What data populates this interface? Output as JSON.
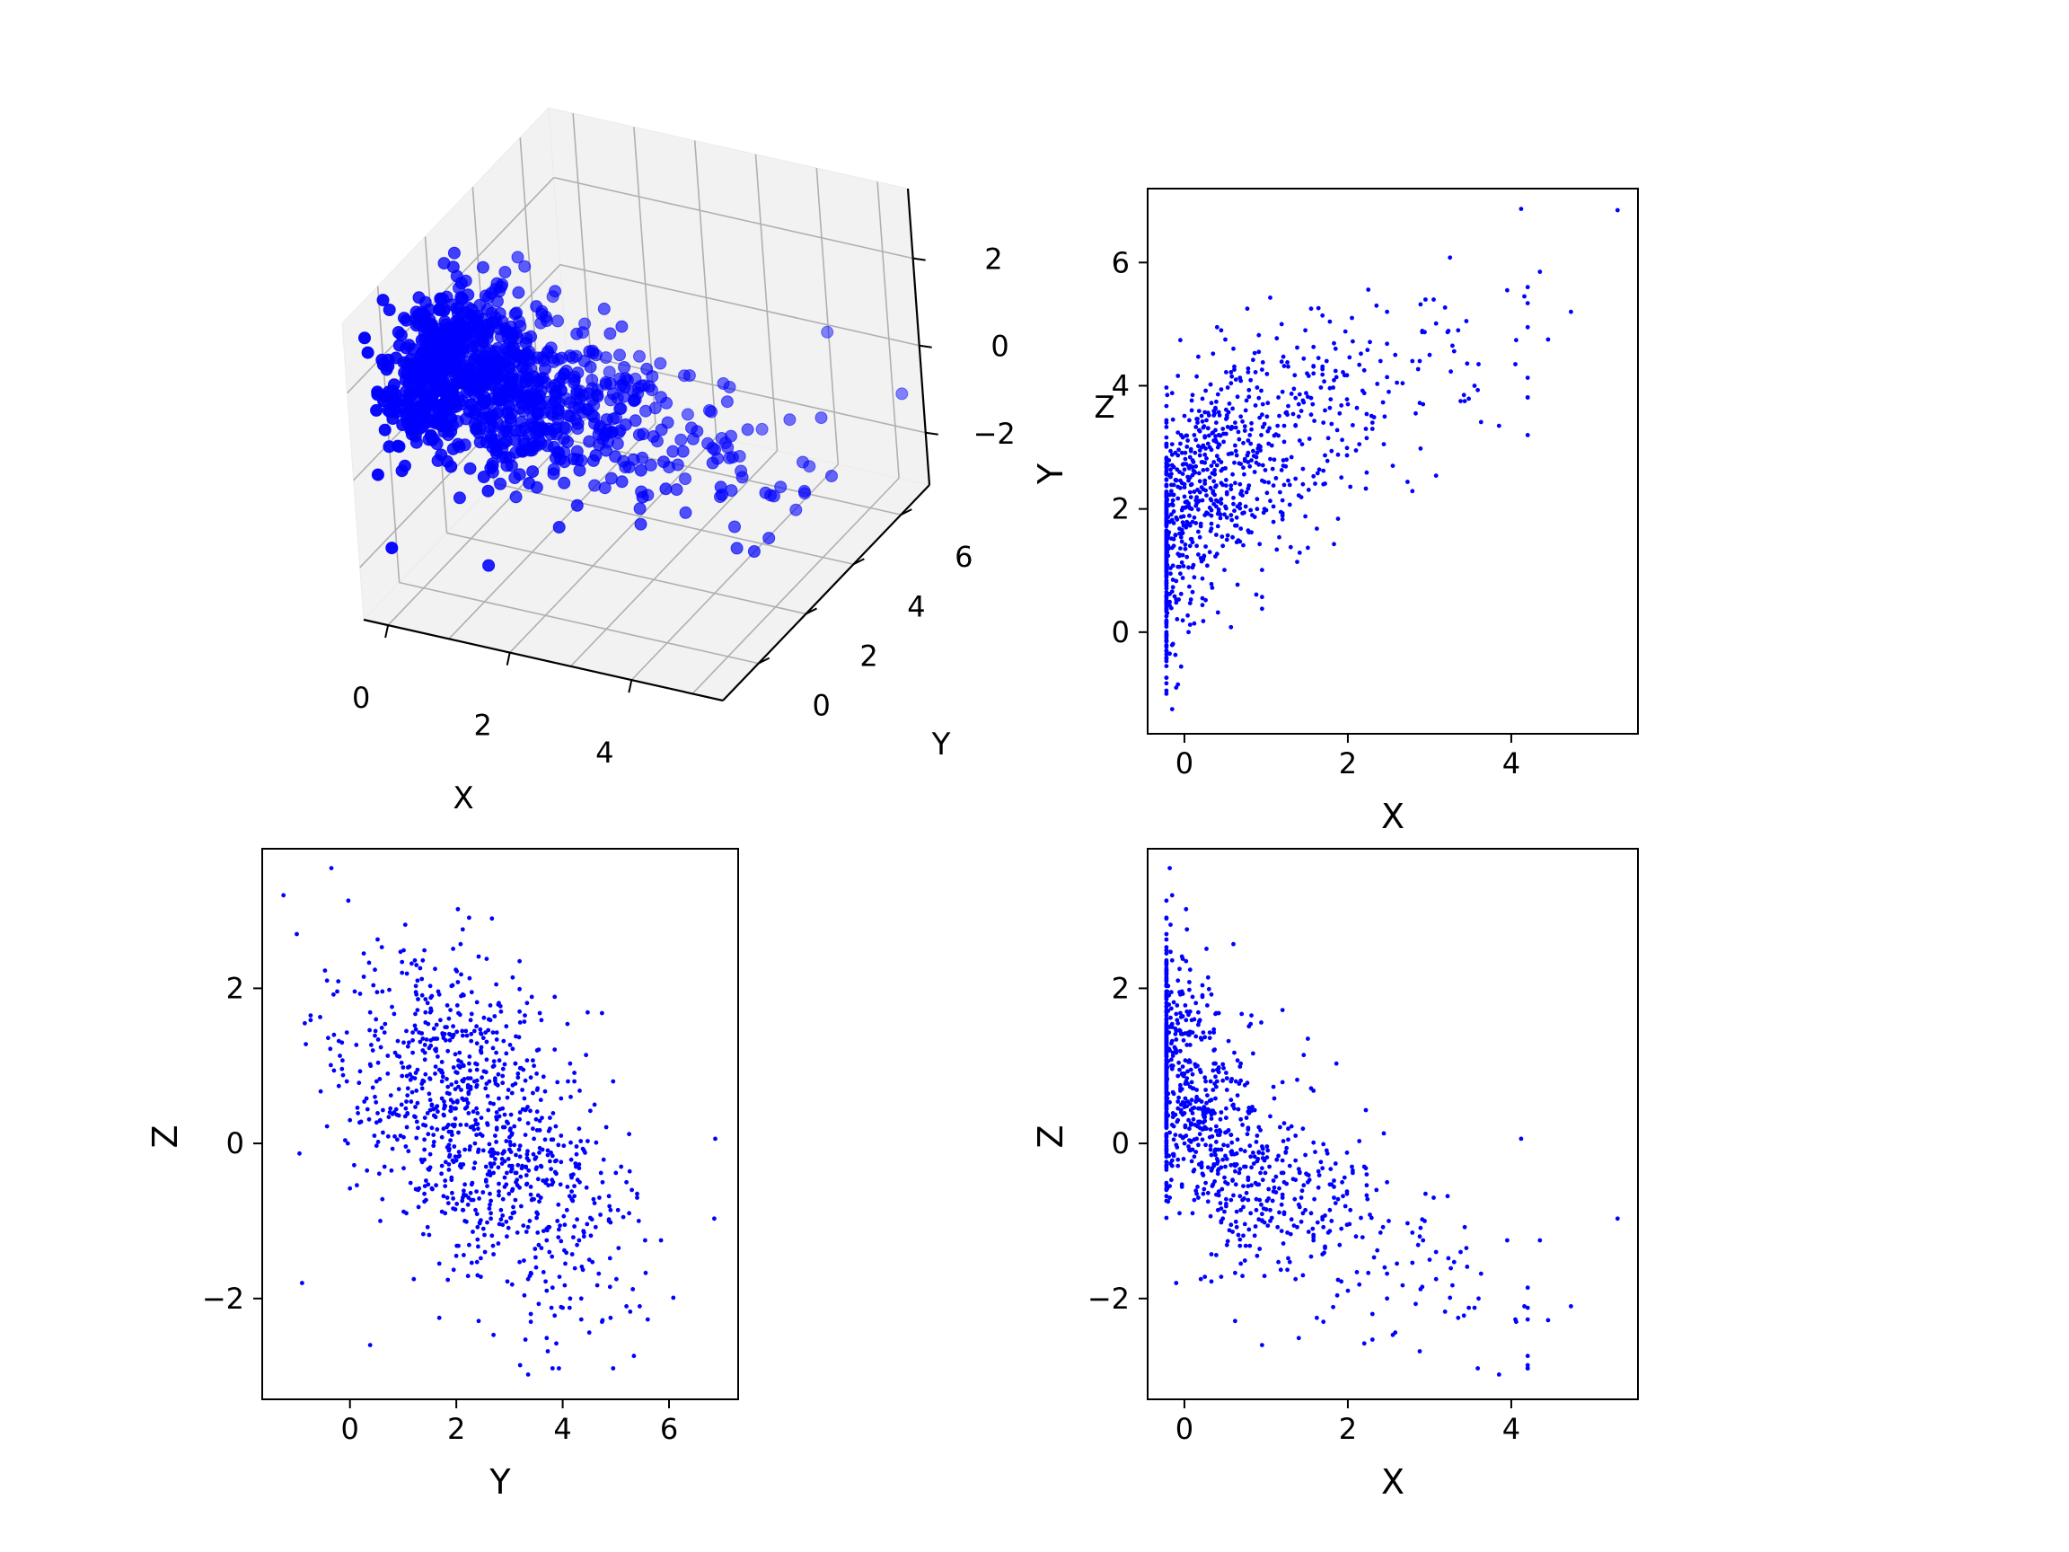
{
  "colors": {
    "points": "#0000ff",
    "axes": "#000000",
    "pane": "#f2f2f2",
    "pane_grid": "#b0b0b0"
  },
  "chart_data": [
    {
      "type": "scatter",
      "projection": "3d",
      "title": "",
      "xlabel": "X",
      "ylabel": "Y",
      "zlabel": "Z",
      "xticks": [
        "0",
        "2",
        "4"
      ],
      "yticks": [
        "0",
        "2",
        "4",
        "6"
      ],
      "zticks": [
        "−2",
        "0",
        "2"
      ],
      "xlim": [
        -0.4,
        5.5
      ],
      "ylim": [
        -1.5,
        7.2
      ],
      "zlim": [
        -3.2,
        3.6
      ],
      "grid": true,
      "n_points": 1000,
      "series": [
        {
          "shared_points": true,
          "marker": "o"
        }
      ]
    },
    {
      "type": "scatter",
      "title": "",
      "xlabel": "X",
      "ylabel": "Y",
      "x_column": "x",
      "y_column": "y",
      "xticks": [
        "0",
        "2",
        "4"
      ],
      "yticks": [
        "0",
        "2",
        "4",
        "6"
      ],
      "xlim": [
        -0.45,
        5.55
      ],
      "ylim": [
        -1.65,
        7.2
      ],
      "grid": false,
      "series": [
        {
          "shared_points": true,
          "marker": "."
        }
      ]
    },
    {
      "type": "scatter",
      "title": "",
      "xlabel": "Y",
      "ylabel": "Z",
      "x_column": "y",
      "y_column": "z",
      "xticks": [
        "0",
        "2",
        "4",
        "6"
      ],
      "yticks": [
        "−2",
        "0",
        "2"
      ],
      "xlim": [
        -1.65,
        7.3
      ],
      "ylim": [
        -3.3,
        3.8
      ],
      "grid": false,
      "series": [
        {
          "shared_points": true,
          "marker": "."
        }
      ]
    },
    {
      "type": "scatter",
      "title": "",
      "xlabel": "X",
      "ylabel": "Z",
      "x_column": "x",
      "y_column": "z",
      "xticks": [
        "0",
        "2",
        "4"
      ],
      "yticks": [
        "−2",
        "0",
        "2"
      ],
      "xlim": [
        -0.45,
        5.55
      ],
      "ylim": [
        -3.3,
        3.8
      ],
      "grid": false,
      "series": [
        {
          "shared_points": true,
          "marker": "."
        }
      ]
    }
  ],
  "shared_points_note": "shared_points lists (x, y, z) triples drawn in every panel",
  "shared_points": [
    [
      5.3,
      6.85,
      -0.97
    ],
    [
      4.73,
      5.2,
      -2.1
    ],
    [
      4.45,
      4.75,
      -2.28
    ],
    [
      4.35,
      5.85,
      -1.25
    ],
    [
      4.05,
      4.35,
      -2.27
    ],
    [
      3.95,
      5.55,
      -1.25
    ],
    [
      3.85,
      3.35,
      -2.98
    ],
    [
      3.6,
      4.35,
      -2.0
    ],
    [
      3.55,
      4.0,
      -2.12
    ],
    [
      3.45,
      5.05,
      -1.35
    ],
    [
      3.42,
      3.85,
      -2.22
    ],
    [
      3.38,
      3.75,
      -1.4
    ],
    [
      3.35,
      4.9,
      -2.25
    ],
    [
      3.05,
      5.4,
      -0.7
    ],
    [
      3.0,
      4.5,
      -1.5
    ],
    [
      2.95,
      5.4,
      -0.65
    ],
    [
      2.88,
      4.4,
      -1.2
    ],
    [
      2.6,
      4.05,
      -1.55
    ],
    [
      2.55,
      2.7,
      -2.47
    ],
    [
      2.58,
      4.5,
      -2.44
    ],
    [
      2.5,
      3.9,
      -1.0
    ],
    [
      2.48,
      5.2,
      -0.5
    ],
    [
      2.45,
      3.5,
      -1.6
    ],
    [
      2.4,
      4.4,
      -1.15
    ],
    [
      2.35,
      5.3,
      -0.6
    ],
    [
      2.3,
      3.4,
      -2.2
    ],
    [
      2.2,
      4.25,
      -0.3
    ],
    [
      2.1,
      2.95,
      -1.2
    ],
    [
      2.05,
      5.1,
      -0.3
    ],
    [
      2.0,
      3.7,
      -1.9
    ],
    [
      1.7,
      3.4,
      -2.3
    ],
    [
      1.62,
      1.68,
      -2.25
    ],
    [
      1.55,
      5.25,
      -0.9
    ],
    [
      1.5,
      4.2,
      -0.4
    ],
    [
      1.45,
      2.4,
      -1.7
    ],
    [
      1.05,
      5.43,
      -1.0
    ],
    [
      0.95,
      0.38,
      -2.6
    ],
    [
      0.6,
      4.6,
      0.5
    ],
    [
      0.5,
      4.75,
      -0.5
    ],
    [
      0.4,
      4.95,
      0.8
    ],
    [
      0.33,
      0.78,
      -0.35
    ],
    [
      0.2,
      1.2,
      -1.75
    ],
    [
      0.15,
      4.15,
      0.6
    ],
    [
      0.05,
      0.0,
      0.3
    ],
    [
      -0.05,
      0.95,
      0.1
    ],
    [
      -0.08,
      -0.85,
      1.55
    ],
    [
      -0.1,
      -0.9,
      -1.8
    ],
    [
      -0.15,
      -1.25,
      3.2
    ],
    [
      -0.18,
      -0.35,
      3.55
    ],
    [
      -0.2,
      1.4,
      -0.75
    ],
    [
      -0.22,
      -1.0,
      2.7
    ],
    [
      -0.12,
      0.58,
      1.24
    ],
    [
      -0.07,
      0.53,
      1.04
    ],
    [
      -0.02,
      1.61,
      0.99
    ],
    [
      0.03,
      1.22,
      0.84
    ],
    [
      -0.09,
      0.21,
      0.28
    ],
    [
      0.07,
      2.84,
      1.7
    ],
    [
      -0.19,
      1.36,
      1.91
    ],
    [
      -0.04,
      1.54,
      0.5
    ],
    [
      0.12,
      0.14,
      0.46
    ],
    [
      -0.14,
      2.23,
      0.66
    ],
    [
      0.08,
      0.53,
      0.02
    ],
    [
      -0.03,
      1.98,
      0.7
    ],
    [
      0.19,
      2.87,
      0.45
    ],
    [
      -0.17,
      0.95,
      2.47
    ],
    [
      0.0,
      2.4,
      0.39
    ],
    [
      -0.11,
      2.91,
      0.37
    ],
    [
      0.15,
      2.19,
      0.57
    ],
    [
      0.04,
      0.27,
      0.54
    ],
    [
      -0.21,
      1.09,
      0.98
    ],
    [
      0.1,
      3.85,
      1.89
    ],
    [
      0.05,
      2.09,
      1.05
    ],
    [
      -0.16,
      2.39,
      1.29
    ],
    [
      0.21,
      3.51,
      -0.31
    ],
    [
      -0.06,
      2.6,
      1.46
    ],
    [
      0.01,
      2.11,
      0.58
    ],
    [
      -0.13,
      2.39,
      1.82
    ],
    [
      0.17,
      1.26,
      0.28
    ],
    [
      -0.08,
      2.17,
      0.45
    ],
    [
      0.11,
      2.62,
      -0.36
    ],
    [
      0.23,
      3.32,
      -0.41
    ],
    [
      -0.01,
      1.73,
      0.08
    ],
    [
      0.14,
      1.77,
      0.54
    ],
    [
      0.36,
      2.08,
      -0.27
    ],
    [
      0.42,
      2.8,
      -0.67
    ],
    [
      0.51,
      3.46,
      -0.72
    ],
    [
      0.29,
      3.56,
      -0.75
    ],
    [
      0.67,
      3.13,
      -0.38
    ],
    [
      0.45,
      2.09,
      -0.31
    ],
    [
      0.79,
      3.93,
      -1.11
    ],
    [
      0.58,
      2.9,
      -0.1
    ],
    [
      0.32,
      2.16,
      -0.08
    ],
    [
      0.71,
      3.42,
      -0.73
    ],
    [
      0.49,
      1.91,
      -0.44
    ],
    [
      0.88,
      2.84,
      -0.86
    ],
    [
      0.38,
      3.62,
      -0.08
    ],
    [
      0.62,
      3.03,
      -0.36
    ],
    [
      0.55,
      3.71,
      -1.12
    ],
    [
      0.82,
      1.62,
      -0.54
    ],
    [
      0.27,
      2.22,
      0.52
    ],
    [
      0.73,
      2.56,
      -0.3
    ],
    [
      0.93,
      2.95,
      -0.38
    ],
    [
      1.02,
      3.26,
      -1.06
    ],
    [
      1.16,
      3.51,
      -0.89
    ],
    [
      1.34,
      3.95,
      -1.06
    ],
    [
      1.27,
      2.46,
      -1.48
    ],
    [
      1.08,
      2.65,
      -0.74
    ],
    [
      1.41,
      3.86,
      -0.37
    ],
    [
      1.22,
      3.09,
      -0.89
    ],
    [
      1.58,
      4.31,
      -1.25
    ],
    [
      1.12,
      3.21,
      -0.43
    ],
    [
      1.46,
      3.73,
      -0.54
    ],
    [
      1.31,
      2.84,
      -0.98
    ],
    [
      1.69,
      4.18,
      -1.43
    ],
    [
      1.05,
      2.13,
      -0.86
    ],
    [
      1.83,
      4.09,
      -0.56
    ],
    [
      1.38,
      4.62,
      -1.08
    ],
    [
      1.9,
      3.55,
      -1.31
    ],
    [
      1.24,
      2.69,
      -0.11
    ],
    [
      1.55,
      3.8,
      -1.46
    ],
    [
      2.02,
      4.46,
      -1.04
    ],
    [
      1.76,
      3.15,
      -1.15
    ],
    [
      2.18,
      3.92,
      -1.21
    ],
    [
      2.27,
      4.71,
      -0.92
    ],
    [
      2.11,
      3.64,
      -1.66
    ],
    [
      1.64,
      4.45,
      -0.57
    ],
    [
      2.36,
      4.03,
      -1.38
    ],
    [
      1.97,
      4.88,
      -0.81
    ],
    [
      2.43,
      3.73,
      -1.08
    ],
    [
      1.72,
      2.87,
      -0.93
    ],
    [
      2.24,
      4.58,
      -0.72
    ],
    [
      1.18,
      1.95,
      -1.63
    ],
    [
      0.84,
      4.42,
      -0.12
    ],
    [
      1.36,
      3.35,
      -1.75
    ],
    [
      0.98,
      2.44,
      -1.02
    ],
    [
      0.64,
      1.73,
      -0.88
    ],
    [
      0.76,
      2.27,
      -0.64
    ],
    [
      1.48,
      4.9,
      -0.86
    ],
    [
      0.44,
      3.19,
      0.31
    ],
    [
      0.57,
      2.38,
      0.11
    ],
    [
      1.29,
      2.07,
      -0.29
    ],
    [
      1.87,
      3.28,
      -1.96
    ],
    [
      2.06,
      3.36,
      -0.35
    ],
    [
      0.31,
      3.0,
      0.08
    ],
    [
      0.92,
      3.48,
      -1.36
    ],
    [
      1.13,
      4.77,
      -0.21
    ],
    [
      0.69,
      4.08,
      -0.86
    ],
    [
      1.63,
      2.58,
      -1.02
    ],
    [
      0.25,
      2.41,
      0.19
    ],
    [
      0.81,
      1.98,
      -0.17
    ],
    [
      1.44,
      3.05,
      -0.61
    ],
    [
      2.14,
      3.05,
      -1.82
    ],
    [
      0.53,
      3.33,
      -0.52
    ],
    [
      1.01,
      4.19,
      -0.74
    ],
    [
      0.39,
      1.58,
      0.02
    ],
    [
      1.79,
      3.78,
      -0.33
    ],
    [
      0.87,
      3.68,
      -0.51
    ],
    [
      1.21,
      2.79,
      -1.29
    ],
    [
      0.61,
      4.31,
      -0.27
    ],
    [
      1.52,
      2.31,
      -1.14
    ],
    [
      0.47,
      2.65,
      -0.97
    ],
    [
      1.94,
      4.22,
      -0.68
    ],
    [
      0.74,
      3.27,
      -1.51
    ],
    [
      1.09,
      1.79,
      -0.48
    ],
    [
      0.34,
      2.58,
      -0.55
    ],
    [
      1.67,
      3.97,
      -0.24
    ],
    [
      0.96,
      2.71,
      -0.13
    ],
    [
      2.32,
      3.49,
      -1.47
    ],
    [
      0.66,
      1.49,
      -1.18
    ],
    [
      1.26,
      4.38,
      -1.63
    ],
    [
      0.41,
      3.86,
      -0.23
    ],
    [
      1.4,
      2.22,
      -0.79
    ],
    [
      0.52,
      2.24,
      -1.31
    ],
    [
      1.15,
      3.81,
      -0.16
    ],
    [
      0.89,
      2.0,
      -1.45
    ],
    [
      1.59,
      3.43,
      -0.72
    ],
    [
      0.78,
      2.76,
      0.2
    ]
  ]
}
